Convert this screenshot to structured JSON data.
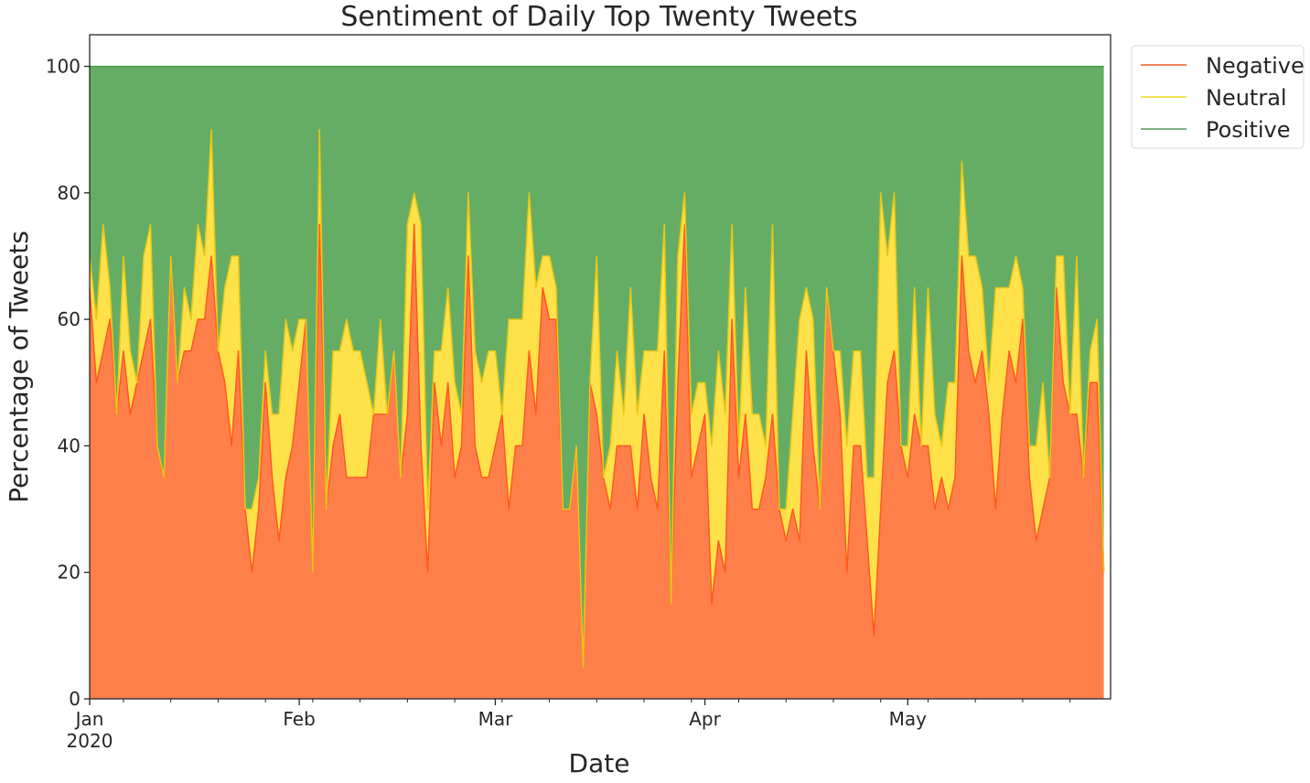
{
  "chart_data": {
    "type": "area",
    "stacked": true,
    "title": "Sentiment of Daily Top Twenty Tweets",
    "xlabel": "Date",
    "ylabel": "Percentage of Tweets",
    "x_start": "2020-01-01",
    "x_end": "2020-05-31",
    "ylim": [
      0,
      105
    ],
    "y_ticks": [
      0,
      20,
      40,
      60,
      80,
      100
    ],
    "x_ticks": [
      {
        "date": "2020-01-01",
        "label": "Jan",
        "sublabel": "2020"
      },
      {
        "date": "2020-02-01",
        "label": "Feb",
        "sublabel": ""
      },
      {
        "date": "2020-03-01",
        "label": "Mar",
        "sublabel": ""
      },
      {
        "date": "2020-04-01",
        "label": "Apr",
        "sublabel": ""
      },
      {
        "date": "2020-05-01",
        "label": "May",
        "sublabel": ""
      }
    ],
    "legend_position": "outside-top-right",
    "series": [
      {
        "name": "Negative",
        "fill": "#ff7f4a",
        "line": "#ff5a1f",
        "legend_line": "#f4845a",
        "values": [
          65,
          50,
          55,
          60,
          45,
          55,
          45,
          50,
          55,
          60,
          40,
          35,
          70,
          50,
          55,
          55,
          60,
          60,
          70,
          55,
          50,
          40,
          55,
          30,
          20,
          30,
          50,
          35,
          25,
          35,
          40,
          50,
          60,
          20,
          75,
          30,
          40,
          45,
          35,
          35,
          35,
          35,
          45,
          45,
          45,
          55,
          35,
          45,
          75,
          40,
          20,
          50,
          40,
          50,
          35,
          40,
          70,
          40,
          35,
          35,
          40,
          45,
          30,
          40,
          40,
          55,
          45,
          65,
          60,
          60,
          30,
          30,
          40,
          5,
          50,
          45,
          35,
          30,
          40,
          40,
          40,
          30,
          45,
          35,
          30,
          55,
          15,
          50,
          75,
          35,
          40,
          45,
          15,
          25,
          20,
          60,
          35,
          45,
          30,
          30,
          35,
          45,
          30,
          25,
          30,
          25,
          55,
          40,
          30,
          65,
          55,
          45,
          20,
          40,
          40,
          25,
          10,
          30,
          50,
          55,
          40,
          35,
          45,
          40,
          40,
          30,
          35,
          30,
          35,
          70,
          55,
          50,
          55,
          45,
          30,
          45,
          55,
          50,
          60,
          35,
          25,
          30,
          35,
          65,
          50,
          45,
          45,
          35,
          50,
          50,
          20
        ]
      },
      {
        "name": "Neutral",
        "fill": "#ffe14a",
        "line": "#e8c817",
        "legend_line": "#f3e25c",
        "values": [
          5,
          10,
          20,
          5,
          0,
          15,
          10,
          0,
          15,
          15,
          0,
          0,
          0,
          0,
          10,
          5,
          15,
          10,
          20,
          0,
          15,
          30,
          15,
          0,
          10,
          5,
          5,
          10,
          20,
          25,
          15,
          10,
          0,
          0,
          15,
          0,
          15,
          10,
          25,
          20,
          20,
          15,
          0,
          15,
          0,
          0,
          0,
          30,
          5,
          35,
          10,
          5,
          15,
          15,
          15,
          5,
          10,
          15,
          15,
          20,
          15,
          0,
          30,
          20,
          20,
          25,
          20,
          5,
          10,
          5,
          0,
          0,
          0,
          0,
          0,
          25,
          0,
          10,
          15,
          5,
          25,
          15,
          10,
          20,
          25,
          20,
          0,
          20,
          5,
          10,
          10,
          5,
          25,
          30,
          25,
          15,
          5,
          20,
          15,
          15,
          5,
          30,
          0,
          5,
          15,
          35,
          10,
          20,
          0,
          0,
          0,
          10,
          20,
          15,
          15,
          10,
          25,
          50,
          20,
          25,
          0,
          5,
          20,
          0,
          25,
          15,
          5,
          20,
          15,
          15,
          15,
          20,
          10,
          5,
          35,
          20,
          10,
          20,
          5,
          5,
          15,
          20,
          0,
          5,
          20,
          0,
          25,
          0,
          5,
          10,
          0
        ]
      },
      {
        "name": "Positive",
        "fill": "#65ad64",
        "line": "#4e9b4d",
        "legend_line": "#7fb27f",
        "values": []
      }
    ]
  }
}
